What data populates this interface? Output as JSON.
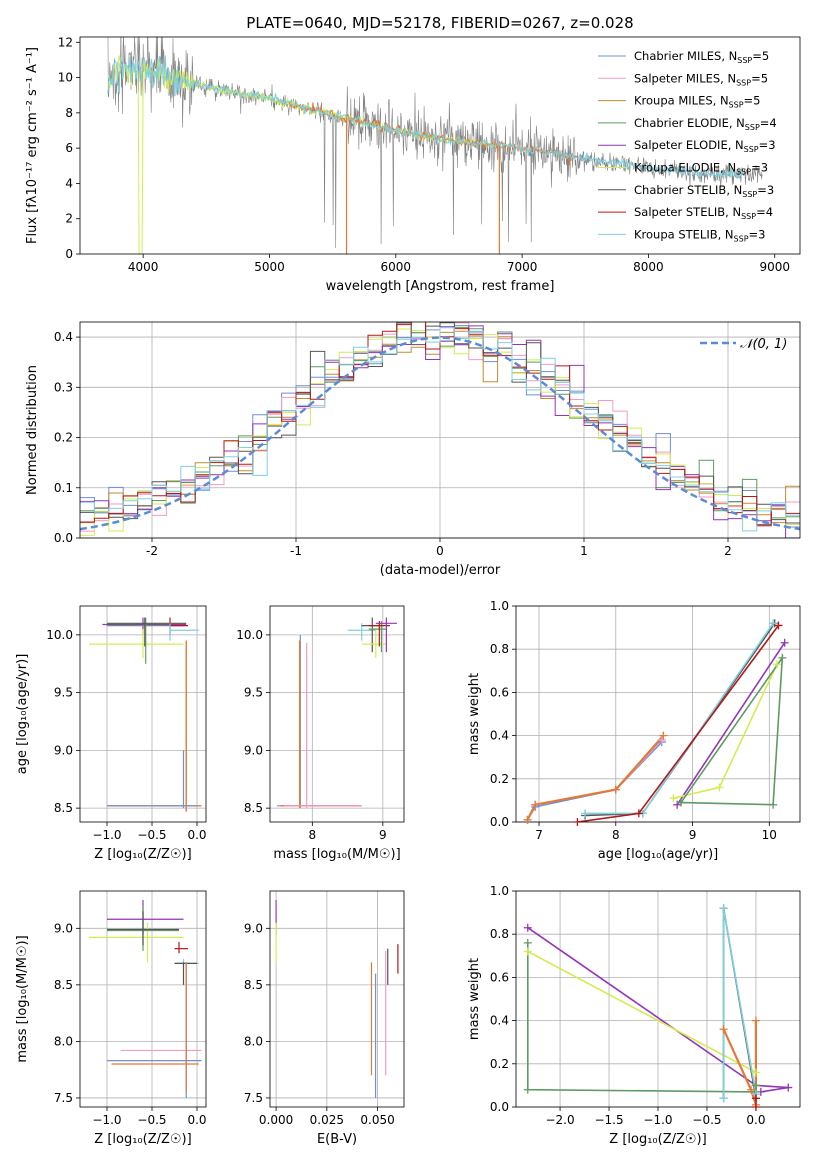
{
  "figure": {
    "title": "PLATE=0640, MJD=52178, FIBERID=0267, z=0.028"
  },
  "colors": {
    "Chabrier MILES": "#6f8fd6",
    "Salpeter MILES": "#f49ac6",
    "Kroupa MILES": "#c48a30",
    "Chabrier ELODIE": "#5e9b62",
    "Salpeter ELODIE": "#9335b6",
    "Kroupa ELODIE": "#d4ec50",
    "Chabrier STELIB": "#555555",
    "Salpeter STELIB": "#b41818",
    "Kroupa STELIB": "#7fd0e0",
    "data": "#808080",
    "orange": "#e27a36",
    "normal": "#5b8bd6"
  },
  "chart_data": [
    {
      "id": "spectrum",
      "type": "line",
      "title": "PLATE=0640, MJD=52178, FIBERID=0267, z=0.028",
      "xlabel": "wavelength [Angstrom, rest frame]",
      "ylabel": "Flux [fλ10⁻¹⁷ erg cm⁻² s⁻¹ A⁻¹]",
      "xlim": [
        3500,
        9200
      ],
      "ylim": [
        0,
        12.3
      ],
      "xticks": [
        4000,
        5000,
        6000,
        7000,
        8000,
        9000
      ],
      "yticks": [
        0,
        2,
        4,
        6,
        8,
        10,
        12
      ],
      "legend_position": "upper right",
      "legend": [
        {
          "main": "Chabrier MILES, N",
          "sub": "SSP",
          "post": "=5"
        },
        {
          "main": "Salpeter MILES, N",
          "sub": "SSP",
          "post": "=5"
        },
        {
          "main": "Kroupa MILES, N",
          "sub": "SSP",
          "post": "=5"
        },
        {
          "main": "Chabrier ELODIE, N",
          "sub": "SSP",
          "post": "=4"
        },
        {
          "main": "Salpeter ELODIE, N",
          "sub": "SSP",
          "post": "=3"
        },
        {
          "main": "Kroupa ELODIE, N",
          "sub": "SSP",
          "post": "=3"
        },
        {
          "main": "Chabrier STELIB, N",
          "sub": "SSP",
          "post": "=3"
        },
        {
          "main": "Salpeter STELIB, N",
          "sub": "SSP",
          "post": "=4"
        },
        {
          "main": "Kroupa STELIB, N",
          "sub": "SSP",
          "post": "=3"
        }
      ],
      "continuum": {
        "x": [
          3720,
          3800,
          3900,
          4000,
          4100,
          4200,
          4300,
          4500,
          4700,
          5000,
          5200,
          5500,
          5800,
          6000,
          6300,
          6600,
          6900,
          7200,
          7500,
          7800,
          8100,
          8400,
          8700,
          8900
        ],
        "y": [
          9.8,
          10.3,
          10.6,
          10.4,
          10.2,
          10.1,
          9.9,
          9.5,
          9.2,
          8.8,
          8.4,
          7.9,
          7.4,
          7.0,
          6.6,
          6.3,
          6.1,
          5.8,
          5.4,
          5.1,
          4.8,
          4.6,
          4.5,
          4.5
        ]
      }
    },
    {
      "id": "residuals",
      "type": "histogram",
      "xlabel": "(data-model)/error",
      "ylabel": "Normed distribution",
      "xlim": [
        -2.5,
        2.5
      ],
      "ylim": [
        0,
        0.43
      ],
      "xticks": [
        -2,
        -1,
        0,
        1,
        2
      ],
      "yticks": [
        0.0,
        0.1,
        0.2,
        0.3,
        0.4
      ],
      "legend": "𝒩(0, 1)",
      "bin_width": 0.1
    },
    {
      "id": "age-vs-Z",
      "type": "errorbar",
      "xlabel": "Z [log₁₀(Z/Z☉)]",
      "ylabel": "age  [log₁₀(age/yr)]",
      "xlim": [
        -1.3,
        0.1
      ],
      "ylim": [
        8.38,
        10.25
      ],
      "xticks": [
        -1.0,
        -0.5,
        0.0
      ],
      "xticklabels": [
        "−1.0",
        "−0.5",
        "0.0"
      ],
      "yticks": [
        8.5,
        9.0,
        9.5,
        10.0
      ],
      "yticklabels": [
        "8.5",
        "9.0",
        "9.5",
        "10.0"
      ],
      "points": [
        {
          "c": "Salpeter ELODIE",
          "x": -0.6,
          "y": 10.09,
          "xe": [
            -1.05,
            -0.12
          ],
          "ye": [
            10.0,
            10.15
          ]
        },
        {
          "c": "Kroupa ELODIE",
          "x": -0.6,
          "y": 9.92,
          "xe": [
            -1.2,
            -0.15
          ],
          "ye": [
            9.8,
            10.05
          ]
        },
        {
          "c": "Chabrier ELODIE",
          "x": -0.57,
          "y": 10.08,
          "xe": [
            -1.0,
            -0.15
          ],
          "ye": [
            9.75,
            10.15
          ]
        },
        {
          "c": "Chabrier STELIB",
          "x": -0.58,
          "y": 10.1,
          "xe": [
            -1.0,
            -0.12
          ],
          "ye": [
            9.9,
            10.15
          ]
        },
        {
          "c": "Salpeter STELIB",
          "x": -0.3,
          "y": 10.08,
          "xe": [
            -0.3,
            -0.1
          ],
          "ye": [
            10.0,
            10.15
          ]
        },
        {
          "c": "Kroupa STELIB",
          "x": -0.3,
          "y": 10.04,
          "xe": [
            -0.3,
            0.02
          ],
          "ye": [
            9.95,
            10.1
          ]
        },
        {
          "c": "Kroupa MILES",
          "x": -0.12,
          "y": 8.52,
          "xe": [
            -1.0,
            0.05
          ],
          "ye": [
            8.47,
            9.95
          ]
        },
        {
          "c": "orange",
          "x": -0.12,
          "y": 8.52,
          "xe": [
            -1.0,
            0.05
          ],
          "ye": [
            8.47,
            9.95
          ]
        },
        {
          "c": "Chabrier MILES",
          "x": -0.15,
          "y": 8.52,
          "xe": [
            -1.0,
            0.0
          ],
          "ye": [
            8.5,
            9.0
          ]
        }
      ]
    },
    {
      "id": "age-vs-mass",
      "type": "errorbar",
      "xlabel": "mass [log₁₀(M/M☉)]",
      "ylabel": "",
      "xlim": [
        7.4,
        9.3
      ],
      "ylim": [
        8.38,
        10.25
      ],
      "xticks": [
        8,
        9
      ],
      "xticklabels": [
        "8",
        "9"
      ],
      "yticks": [
        8.5,
        9.0,
        9.5,
        10.0
      ],
      "yticklabels": [
        "8.5",
        "9.0",
        "9.5",
        "10.0"
      ],
      "points": [
        {
          "c": "Chabrier MILES",
          "x": 7.83,
          "y": 8.52,
          "xe": [
            7.5,
            8.6
          ],
          "ye": [
            8.5,
            10.0
          ]
        },
        {
          "c": "Kroupa MILES",
          "x": 7.82,
          "y": 8.52,
          "xe": [
            7.55,
            8.7
          ],
          "ye": [
            8.5,
            9.95
          ]
        },
        {
          "c": "orange",
          "x": 7.82,
          "y": 8.52,
          "xe": [
            7.55,
            8.7
          ],
          "ye": [
            8.5,
            9.95
          ]
        },
        {
          "c": "Salpeter MILES",
          "x": 7.92,
          "y": 8.52,
          "xe": [
            7.6,
            8.7
          ],
          "ye": [
            8.5,
            9.93
          ]
        },
        {
          "c": "Kroupa STELIB",
          "x": 8.7,
          "y": 10.04,
          "xe": [
            8.5,
            8.9
          ],
          "ye": [
            9.95,
            10.1
          ]
        },
        {
          "c": "Chabrier STELIB",
          "x": 8.85,
          "y": 10.08,
          "xe": [
            8.7,
            9.0
          ],
          "ye": [
            9.85,
            10.15
          ]
        },
        {
          "c": "Kroupa ELODIE",
          "x": 8.9,
          "y": 9.92,
          "xe": [
            8.7,
            9.05
          ],
          "ye": [
            9.8,
            10.05
          ]
        },
        {
          "c": "Chabrier ELODIE",
          "x": 8.98,
          "y": 10.05,
          "xe": [
            8.8,
            9.05
          ],
          "ye": [
            9.85,
            10.12
          ]
        },
        {
          "c": "Salpeter STELIB",
          "x": 8.95,
          "y": 10.08,
          "xe": [
            8.8,
            9.1
          ],
          "ye": [
            9.9,
            10.12
          ]
        },
        {
          "c": "Salpeter ELODIE",
          "x": 9.05,
          "y": 10.1,
          "xe": [
            8.9,
            9.2
          ],
          "ye": [
            9.85,
            10.15
          ]
        }
      ]
    },
    {
      "id": "weight-vs-age",
      "type": "line",
      "xlabel": "age  [log₁₀(age/yr)]",
      "ylabel": "mass weight",
      "xlim": [
        6.7,
        10.4
      ],
      "ylim": [
        0,
        1.0
      ],
      "xticks": [
        7,
        8,
        9,
        10
      ],
      "xticklabels": [
        "7",
        "8",
        "9",
        "10"
      ],
      "yticks": [
        0,
        0.2,
        0.4,
        0.6,
        0.8,
        1.0
      ],
      "yticklabels": [
        "0.0",
        "0.2",
        "0.4",
        "0.6",
        "0.8",
        "1.0"
      ],
      "series": [
        {
          "c": "Chabrier MILES",
          "x": [
            6.85,
            6.95,
            8.0,
            8.6
          ],
          "y": [
            0.01,
            0.07,
            0.15,
            0.37
          ]
        },
        {
          "c": "Salpeter MILES",
          "x": [
            6.85,
            6.95,
            8.0,
            8.6
          ],
          "y": [
            0.01,
            0.08,
            0.15,
            0.38
          ]
        },
        {
          "c": "orange",
          "x": [
            6.85,
            6.95,
            8.0,
            8.62
          ],
          "y": [
            0.01,
            0.08,
            0.15,
            0.4
          ]
        },
        {
          "c": "Chabrier STELIB",
          "x": [
            7.6,
            8.35,
            10.07
          ],
          "y": [
            0.03,
            0.04,
            0.92
          ]
        },
        {
          "c": "Kroupa STELIB",
          "x": [
            7.6,
            8.35,
            10.05
          ],
          "y": [
            0.04,
            0.04,
            0.92
          ]
        },
        {
          "c": "Salpeter STELIB",
          "x": [
            7.5,
            8.3,
            10.12
          ],
          "y": [
            0.0,
            0.04,
            0.91
          ]
        },
        {
          "c": "Salpeter ELODIE",
          "x": [
            8.8,
            10.2
          ],
          "y": [
            0.08,
            0.83
          ]
        },
        {
          "c": "Kroupa ELODIE",
          "x": [
            8.75,
            9.35,
            10.1
          ],
          "y": [
            0.11,
            0.16,
            0.73
          ]
        },
        {
          "c": "Chabrier ELODIE",
          "x": [
            8.85,
            10.05,
            10.17,
            8.85
          ],
          "y": [
            0.09,
            0.08,
            0.76,
            0.09
          ]
        }
      ]
    },
    {
      "id": "mass-vs-Z",
      "type": "errorbar",
      "xlabel": "Z [log₁₀(Z/Z☉)]",
      "ylabel": "mass [log₁₀(M/M☉)]",
      "xlim": [
        -1.3,
        0.1
      ],
      "ylim": [
        7.42,
        9.33
      ],
      "xticks": [
        -1.0,
        -0.5,
        0.0
      ],
      "xticklabels": [
        "−1.0",
        "−0.5",
        "0.0"
      ],
      "yticks": [
        7.5,
        8.0,
        8.5,
        9.0
      ],
      "yticklabels": [
        "7.5",
        "8.0",
        "8.5",
        "9.0"
      ],
      "points": [
        {
          "c": "Salpeter ELODIE",
          "x": -0.6,
          "y": 9.08,
          "xe": [
            -1.0,
            -0.15
          ],
          "ye": [
            8.95,
            9.25
          ]
        },
        {
          "c": "Kroupa ELODIE",
          "x": -0.55,
          "y": 8.92,
          "xe": [
            -1.2,
            -0.15
          ],
          "ye": [
            8.7,
            9.05
          ]
        },
        {
          "c": "Chabrier ELODIE",
          "x": -0.6,
          "y": 8.98,
          "xe": [
            -1.0,
            -0.2
          ],
          "ye": [
            8.8,
            9.2
          ]
        },
        {
          "c": "Chabrier STELIB",
          "x": -0.6,
          "y": 8.99,
          "xe": [
            -1.0,
            -0.2
          ],
          "ye": [
            8.85,
            9.15
          ]
        },
        {
          "c": "Salpeter STELIB",
          "x": -0.2,
          "y": 8.82,
          "xe": [
            -0.25,
            -0.1
          ],
          "ye": [
            8.78,
            8.88
          ]
        },
        {
          "c": "Kroupa STELIB",
          "x": -0.15,
          "y": 8.69,
          "xe": [
            -0.25,
            0.02
          ],
          "ye": [
            8.65,
            8.73
          ]
        },
        {
          "c": "Chabrier STELIB",
          "x": -0.15,
          "y": 8.69,
          "xe": [
            -0.25,
            0.0
          ],
          "ye": [
            8.5,
            8.7
          ]
        },
        {
          "c": "Salpeter MILES",
          "x": -0.12,
          "y": 7.92,
          "xe": [
            -0.85,
            0.05
          ],
          "ye": [
            7.9,
            7.95
          ]
        },
        {
          "c": "Chabrier MILES",
          "x": -0.12,
          "y": 7.83,
          "xe": [
            -1.0,
            0.05
          ],
          "ye": [
            7.5,
            8.7
          ]
        },
        {
          "c": "orange",
          "x": -0.12,
          "y": 7.8,
          "xe": [
            -0.95,
            0.02
          ],
          "ye": [
            7.55,
            8.7
          ]
        }
      ]
    },
    {
      "id": "mass-vs-EBV",
      "type": "errorbar",
      "xlabel": "E(B-V)",
      "ylabel": "",
      "xlim": [
        -0.003,
        0.063
      ],
      "ylim": [
        7.42,
        9.33
      ],
      "xticks": [
        0.0,
        0.025,
        0.05
      ],
      "xticklabels": [
        "0.000",
        "0.025",
        "0.050"
      ],
      "yticks": [
        7.5,
        8.0,
        8.5,
        9.0
      ],
      "yticklabels": [
        "7.5",
        "8.0",
        "8.5",
        "9.0"
      ],
      "points": [
        {
          "c": "Salpeter ELODIE",
          "x": 0.0,
          "y": 9.1,
          "xe": [
            0.0,
            0.0
          ],
          "ye": [
            8.95,
            9.25
          ]
        },
        {
          "c": "Kroupa ELODIE",
          "x": 0.0,
          "y": 8.9,
          "xe": [
            0.0,
            0.0
          ],
          "ye": [
            8.7,
            9.05
          ]
        },
        {
          "c": "orange",
          "x": 0.047,
          "y": 8.2,
          "xe": [
            0.047,
            0.047
          ],
          "ye": [
            7.7,
            8.7
          ]
        },
        {
          "c": "Chabrier MILES",
          "x": 0.049,
          "y": 8.2,
          "xe": [
            0.049,
            0.049
          ],
          "ye": [
            7.5,
            8.6
          ]
        },
        {
          "c": "Salpeter MILES",
          "x": 0.054,
          "y": 8.25,
          "xe": [
            0.054,
            0.054
          ],
          "ye": [
            7.7,
            8.8
          ]
        },
        {
          "c": "Chabrier STELIB",
          "x": 0.055,
          "y": 8.65,
          "xe": [
            0.055,
            0.055
          ],
          "ye": [
            8.5,
            8.82
          ]
        },
        {
          "c": "Salpeter STELIB",
          "x": 0.06,
          "y": 8.73,
          "xe": [
            0.06,
            0.06
          ],
          "ye": [
            8.6,
            8.86
          ]
        }
      ]
    },
    {
      "id": "weight-vs-Z",
      "type": "line",
      "xlabel": "Z [log₁₀(Z/Z☉)]",
      "ylabel": "mass weight",
      "xlim": [
        -2.45,
        0.45
      ],
      "ylim": [
        0,
        1.0
      ],
      "xticks": [
        -2.0,
        -1.5,
        -1.0,
        -0.5,
        0.0
      ],
      "xticklabels": [
        "−2.0",
        "−1.5",
        "−1.0",
        "−0.5",
        "0.0"
      ],
      "yticks": [
        0,
        0.2,
        0.4,
        0.6,
        0.8,
        1.0
      ],
      "yticklabels": [
        "0.0",
        "0.2",
        "0.4",
        "0.6",
        "0.8",
        "1.0"
      ],
      "series": [
        {
          "c": "Salpeter ELODIE",
          "x": [
            -2.33,
            0.0,
            0.33,
            0.05
          ],
          "y": [
            0.83,
            0.1,
            0.09,
            0.07
          ]
        },
        {
          "c": "Kroupa ELODIE",
          "x": [
            -2.33,
            0.0,
            0.0
          ],
          "y": [
            0.72,
            0.16,
            0.1
          ]
        },
        {
          "c": "Chabrier ELODIE",
          "x": [
            -2.33,
            -2.33,
            0.0,
            0.0
          ],
          "y": [
            0.76,
            0.08,
            0.07,
            0.1
          ]
        },
        {
          "c": "Chabrier STELIB",
          "x": [
            -0.33,
            -0.33,
            0.0
          ],
          "y": [
            0.04,
            0.92,
            0.04
          ]
        },
        {
          "c": "Kroupa STELIB",
          "x": [
            -0.33,
            -0.33,
            0.0
          ],
          "y": [
            0.04,
            0.92,
            0.06
          ]
        },
        {
          "c": "orange",
          "x": [
            -0.33,
            -0.05,
            0.0,
            0.0
          ],
          "y": [
            0.36,
            0.08,
            0.01,
            0.4
          ]
        },
        {
          "c": "Salpeter STELIB",
          "x": [
            0.0,
            0.0
          ],
          "y": [
            0.0,
            0.04
          ]
        }
      ]
    }
  ]
}
